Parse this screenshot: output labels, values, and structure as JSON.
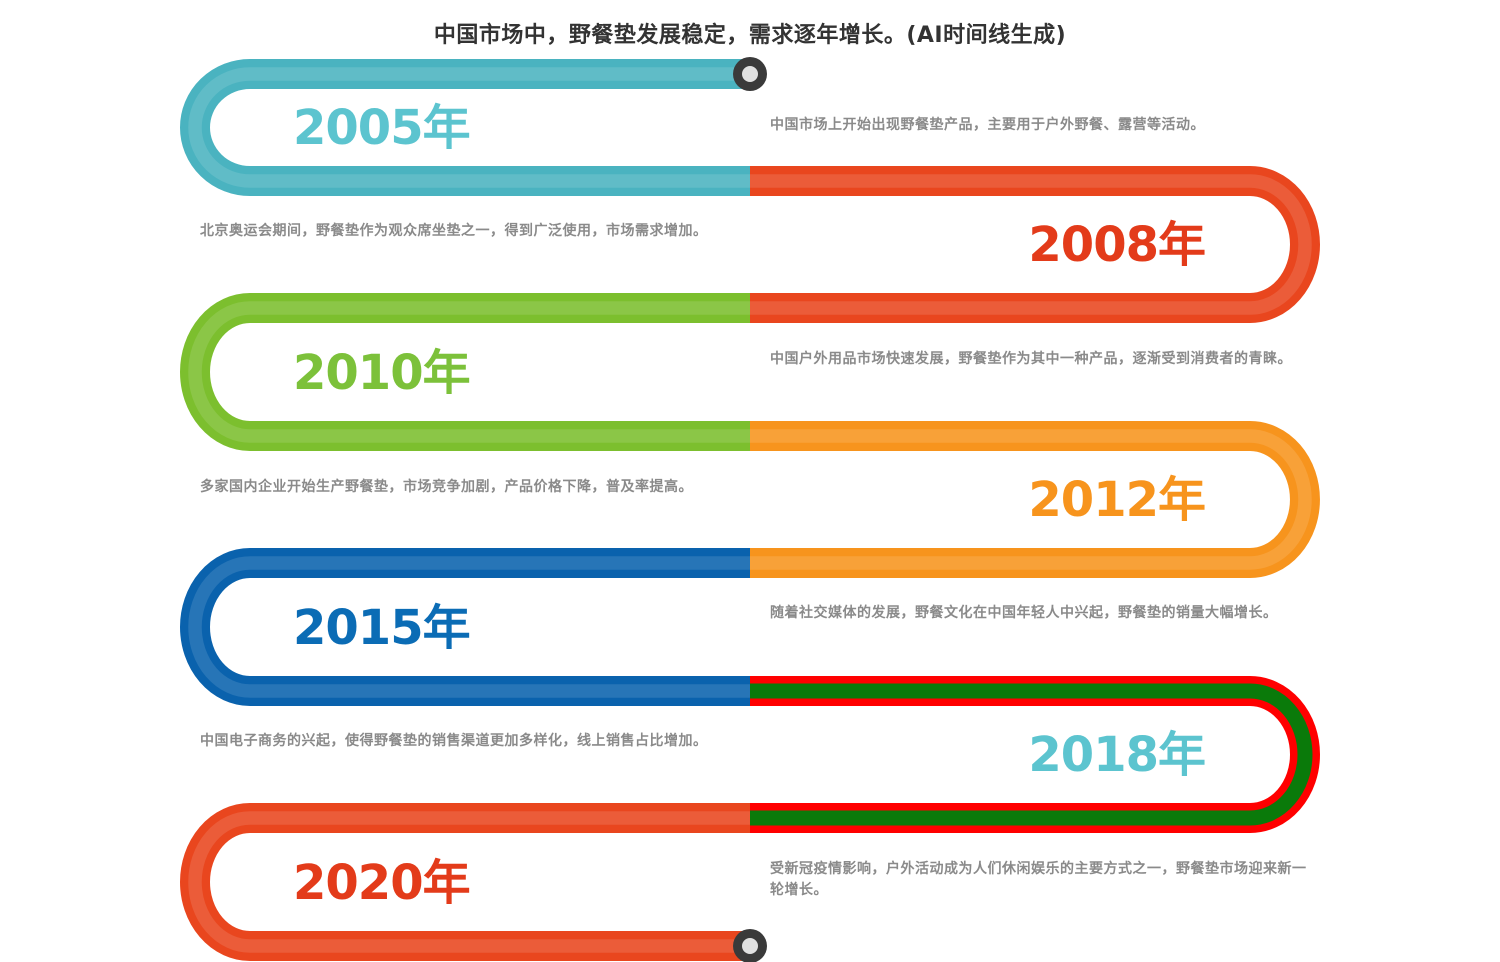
{
  "title": "中国市场中，野餐垫发展稳定，需求逐年增长。(AI时间线生成)",
  "events": [
    {
      "year": "2005年",
      "description": "中国市场上开始出现野餐垫产品，主要用于户外野餐、露营等活动。",
      "color": "#4ab3c0",
      "year_color": "#5cc4cf",
      "side": "left"
    },
    {
      "year": "2008年",
      "description": "北京奥运会期间，野餐垫作为观众席坐垫之一，得到广泛使用，市场需求增加。",
      "color": "#e9461e",
      "year_color": "#e33b1a",
      "side": "right"
    },
    {
      "year": "2010年",
      "description": "中国户外用品市场快速发展，野餐垫作为其中一种产品，逐渐受到消费者的青睐。",
      "color": "#7cbf2e",
      "year_color": "#7cc13a",
      "side": "left"
    },
    {
      "year": "2012年",
      "description": "多家国内企业开始生产野餐垫，市场竞争加剧，产品价格下降，普及率提高。",
      "color": "#f7941d",
      "year_color": "#f7941d",
      "side": "right"
    },
    {
      "year": "2015年",
      "description": "随着社交媒体的发展，野餐文化在中国年轻人中兴起，野餐垫的销量大幅增长。",
      "color": "#0a62ad",
      "year_color": "#0b6cb5",
      "side": "left"
    },
    {
      "year": "2018年",
      "description": "中国电子商务的兴起，使得野餐垫的销售渠道更加多样化，线上销售占比增加。",
      "color": "#ff0000",
      "inner_color": "#0a7a0a",
      "year_color": "#5cc4cf",
      "side": "right"
    },
    {
      "year": "2020年",
      "description": "受新冠疫情影响，户外活动成为人们休闲娱乐的主要方式之一，野餐垫市场迎来新一轮增长。",
      "color": "#e9461e",
      "year_color": "#e33b1a",
      "side": "left"
    }
  ]
}
